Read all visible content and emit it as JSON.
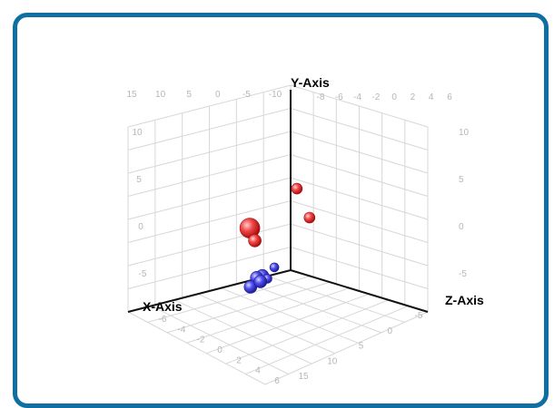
{
  "chart_data": {
    "type": "scatter",
    "title": "",
    "xlabel": "X-Axis",
    "ylabel": "Y-Axis",
    "zlabel": "Z-Axis",
    "view": "3d",
    "grid": true,
    "left_wall_ticks": [
      "15",
      "10",
      "5",
      "0",
      "-5",
      "-10"
    ],
    "right_wall_ticks": [
      "-8",
      "-6",
      "-4",
      "-2",
      "0",
      "2",
      "4",
      "6"
    ],
    "y_ticks": [
      "10",
      "5",
      "0",
      "-5"
    ],
    "floor_x_ticks": [
      "-6",
      "-4",
      "-2",
      "0",
      "2",
      "4",
      "6"
    ],
    "floor_z_ticks": [
      "15",
      "10",
      "5",
      "0",
      "-5"
    ],
    "series": [
      {
        "color": "#e83a3a",
        "points": [
          {
            "x": -6,
            "y": 12,
            "z": -1,
            "size": 6
          },
          {
            "x": 3,
            "y": 9,
            "z": 3,
            "size": 11
          },
          {
            "x": -4,
            "y": 6,
            "z": 6,
            "size": 6
          },
          {
            "x": -1,
            "y": 3,
            "z": -3,
            "size": 7
          }
        ]
      },
      {
        "color": "#4545e0",
        "points": [
          {
            "x": 5,
            "y": -1,
            "z": 10,
            "size": 7
          },
          {
            "x": 0,
            "y": -3,
            "z": 4,
            "size": 5
          },
          {
            "x": 1,
            "y": -5,
            "z": 4,
            "size": 5
          },
          {
            "x": -4,
            "y": -8,
            "z": -8,
            "size": 7
          },
          {
            "x": -2,
            "y": -9,
            "z": -6,
            "size": 7
          },
          {
            "x": -4,
            "y": -9,
            "z": -7,
            "size": 7
          }
        ]
      }
    ]
  }
}
